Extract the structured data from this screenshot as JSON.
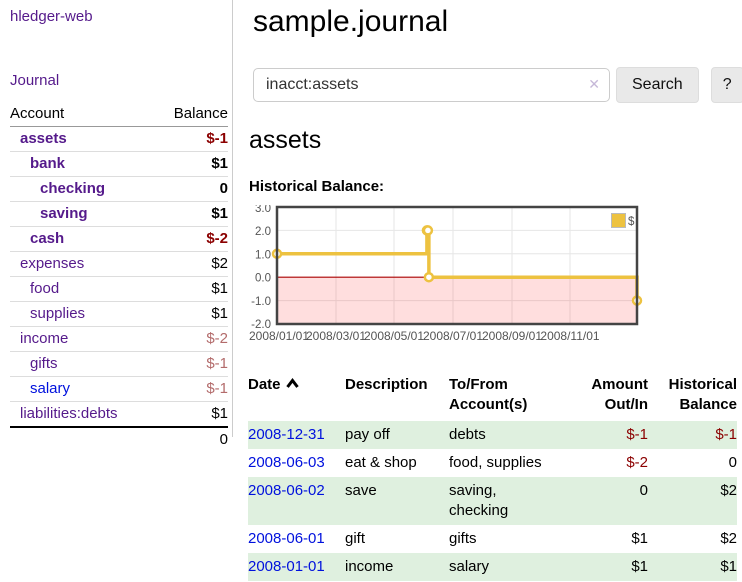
{
  "app": {
    "brand": "hledger-web"
  },
  "sidebar": {
    "nav_journal": "Journal",
    "accounts": {
      "header_account": "Account",
      "header_balance": "Balance",
      "rows": [
        {
          "name": "assets",
          "balance": "$-1"
        },
        {
          "name": "bank",
          "balance": "$1"
        },
        {
          "name": "checking",
          "balance": "0"
        },
        {
          "name": "saving",
          "balance": "$1"
        },
        {
          "name": "cash",
          "balance": "$-2"
        },
        {
          "name": "expenses",
          "balance": "$2"
        },
        {
          "name": "food",
          "balance": "$1"
        },
        {
          "name": "supplies",
          "balance": "$1"
        },
        {
          "name": "income",
          "balance": "$-2"
        },
        {
          "name": "gifts",
          "balance": "$-1"
        },
        {
          "name": "salary",
          "balance": "$-1"
        },
        {
          "name": "liabilities:debts",
          "balance": "$1"
        }
      ],
      "total": "0"
    }
  },
  "header": {
    "title": "sample.journal"
  },
  "search": {
    "value": "inacct:assets",
    "clear_icon": "✕",
    "button_label": "Search",
    "help_label": "?"
  },
  "account_page": {
    "heading": "assets",
    "chart_label": "Historical Balance:"
  },
  "chart_data": {
    "type": "line",
    "title": "Historical Balance:",
    "steps": true,
    "xlim": [
      "2008-01-01",
      "2008-12-31"
    ],
    "ylim": [
      -2,
      3
    ],
    "yticks": [
      "3.0",
      "2.0",
      "1.0",
      "0.0",
      "-1.0",
      "-2.0"
    ],
    "xticks": [
      "2008/01/01",
      "2008/03/01",
      "2008/05/01",
      "2008/07/01",
      "2008/09/01",
      "2008/11/01"
    ],
    "series": [
      {
        "name": "$",
        "color": "#edc240",
        "points": [
          [
            "2008-01-01",
            1
          ],
          [
            "2008-06-01",
            2
          ],
          [
            "2008-06-02",
            2
          ],
          [
            "2008-06-03",
            0
          ],
          [
            "2008-12-31",
            -1
          ]
        ]
      }
    ],
    "legend": {
      "position": "top-right",
      "label": "$"
    },
    "grid": true,
    "zero_line_color": "#aa0000",
    "negative_region_color": "#ffdddd",
    "series_color": "#edc240"
  },
  "register_table": {
    "headers": {
      "date": "Date",
      "description": "Description",
      "account": "To/From Account(s)",
      "amount": "Amount Out/In",
      "balance": "Historical Balance"
    },
    "rows": [
      {
        "date": "2008-12-31",
        "description": "pay off",
        "account": "debts",
        "amount": "$-1",
        "balance": "$-1"
      },
      {
        "date": "2008-06-03",
        "description": "eat & shop",
        "account": "food, supplies",
        "amount": "$-2",
        "balance": "0"
      },
      {
        "date": "2008-06-02",
        "description": "save",
        "account": "saving, checking",
        "amount": "0",
        "balance": "$2"
      },
      {
        "date": "2008-06-01",
        "description": "gift",
        "account": "gifts",
        "amount": "$1",
        "balance": "$2"
      },
      {
        "date": "2008-01-01",
        "description": "income",
        "account": "salary",
        "amount": "$1",
        "balance": "$1"
      }
    ]
  }
}
